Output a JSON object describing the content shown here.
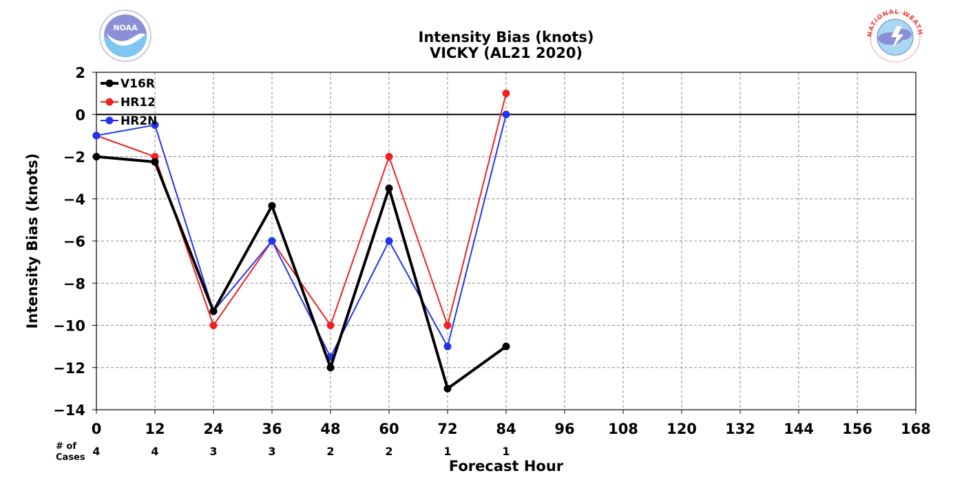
{
  "logos": {
    "noaa_text": "NOAA",
    "nws_ring_text": "NATIONAL WEATHER SERVICE"
  },
  "chart_data": {
    "type": "line",
    "title": "Intensity Bias (knots)",
    "subtitle": "VICKY (AL21 2020)",
    "xlabel": "Forecast Hour",
    "ylabel": "Intensity Bias (knots)",
    "xlim": [
      0,
      168
    ],
    "ylim": [
      -14,
      2
    ],
    "x_ticks": [
      0,
      12,
      24,
      36,
      48,
      60,
      72,
      84,
      96,
      108,
      120,
      132,
      144,
      156,
      168
    ],
    "y_ticks": [
      2,
      0,
      -2,
      -4,
      -6,
      -8,
      -10,
      -12,
      -14
    ],
    "y_tick_labels": [
      "2",
      "0",
      "−2",
      "−4",
      "−6",
      "−8",
      "−10",
      "−12",
      "−14"
    ],
    "grid": true,
    "legend_position": "top-left",
    "series": [
      {
        "name": "V16R",
        "color": "#000000",
        "x": [
          0,
          12,
          24,
          36,
          48,
          60,
          72,
          84
        ],
        "values": [
          -2.0,
          -2.25,
          -9.33,
          -4.33,
          -12.0,
          -3.5,
          -13.0,
          -11.0
        ]
      },
      {
        "name": "HR12",
        "color": "#ee2222",
        "x": [
          0,
          12,
          24,
          36,
          48,
          60,
          72,
          84
        ],
        "values": [
          -1.0,
          -2.0,
          -10.0,
          -6.0,
          -10.0,
          -2.0,
          -10.0,
          1.0
        ]
      },
      {
        "name": "HR2N",
        "color": "#2233ee",
        "x": [
          0,
          12,
          24,
          36,
          48,
          60,
          72,
          84
        ],
        "values": [
          -1.0,
          -0.5,
          -9.33,
          -6.0,
          -11.5,
          -6.0,
          -11.0,
          0.0
        ]
      }
    ],
    "cases": {
      "label_line1": "# of",
      "label_line2": "Cases",
      "x": [
        0,
        12,
        24,
        36,
        48,
        60,
        72,
        84
      ],
      "counts": [
        "4",
        "4",
        "3",
        "3",
        "2",
        "2",
        "1",
        "1"
      ]
    }
  }
}
